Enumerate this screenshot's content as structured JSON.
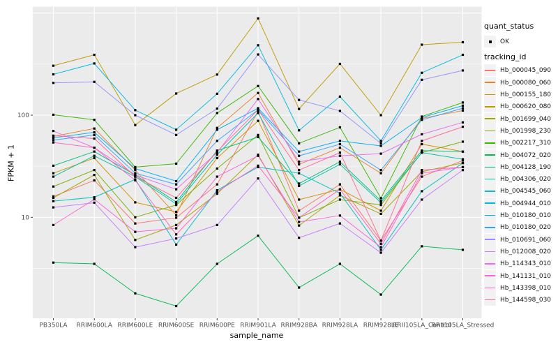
{
  "axes": {
    "y_title": "FPKM + 1",
    "x_title": "sample_name",
    "y_tick_labels": [
      "100",
      "10"
    ]
  },
  "legend": {
    "quant_status_title": "quant_status",
    "quant_status_items": [
      {
        "label": "OK",
        "glyph": "point"
      }
    ],
    "tracking_title": "tracking_id"
  },
  "colors": {
    "panel_bg": "#EBEBEB",
    "grid": "#FFFFFF",
    "tick": "#333333",
    "tick_label": "#4D4D4D",
    "legend_key_bg": "#F2F2F2",
    "point": "#000000"
  },
  "chart_data": {
    "type": "line",
    "title": "",
    "xlabel": "sample_name",
    "ylabel": "FPKM + 1",
    "x_type": "categorical",
    "y_scale": "log10",
    "grid": true,
    "legend_position": "right",
    "ylim": [
      1.03,
      1150
    ],
    "y_labeled_breaks": [
      100,
      10
    ],
    "y_major_gridlines": [
      10,
      100,
      1000
    ],
    "y_minor_gridlines": [
      3.162,
      31.62,
      316.2
    ],
    "quant_status": "OK",
    "categories": [
      "PB350LA",
      "RRIM600LA",
      "RRIM600LE",
      "RRIM600SE",
      "RRIM600PE",
      "RRIM901LA",
      "RRIM928BA",
      "RRIM928LA",
      "RRIM928LE",
      "RRII105LA_Control",
      "RRII105LA_Stressed"
    ],
    "series": [
      {
        "name": "Hb_000045_090",
        "color": "#F8766D",
        "values": [
          16,
          23,
          8.7,
          9.9,
          21,
          109,
          11.6,
          21,
          5.9,
          25,
          36
        ]
      },
      {
        "name": "Hb_000080_060",
        "color": "#EA8331",
        "values": [
          62,
          74,
          29,
          10.5,
          75,
          165,
          33,
          48,
          27,
          93,
          111
        ]
      },
      {
        "name": "Hb_000155_180",
        "color": "#D89000",
        "values": [
          27,
          38,
          14,
          11.3,
          38,
          88,
          14.9,
          18.8,
          11.6,
          52,
          44
        ]
      },
      {
        "name": "Hb_000620_080",
        "color": "#C09B00",
        "values": [
          305,
          390,
          80,
          163,
          250,
          886,
          115,
          318,
          100,
          490,
          518
        ]
      },
      {
        "name": "Hb_001699_040",
        "color": "#A3A500",
        "values": [
          15.5,
          26,
          6,
          8.4,
          17,
          41,
          8.3,
          16.4,
          10.8,
          28,
          34
        ]
      },
      {
        "name": "Hb_001998_230",
        "color": "#7CAE00",
        "values": [
          20,
          29,
          10,
          13.2,
          30,
          64,
          9.9,
          14.9,
          13.2,
          43,
          55
        ]
      },
      {
        "name": "Hb_002217_310",
        "color": "#39B600",
        "values": [
          101,
          90,
          31,
          33.5,
          105,
          193,
          53,
          76,
          15.4,
          97,
          133
        ]
      },
      {
        "name": "Hb_004072_020",
        "color": "#00BB4E",
        "values": [
          3.6,
          3.5,
          1.8,
          1.35,
          3.5,
          6.6,
          2.05,
          3.5,
          1.75,
          5.2,
          4.8
        ]
      },
      {
        "name": "Hb_004128_190",
        "color": "#00BF7D",
        "values": [
          32,
          44,
          26,
          14.1,
          45,
          61,
          21.4,
          35,
          14.5,
          45,
          44
        ]
      },
      {
        "name": "Hb_004306_020",
        "color": "#00C1A3",
        "values": [
          25,
          40,
          25,
          13.5,
          41,
          105,
          20.3,
          33,
          13.9,
          43,
          37
        ]
      },
      {
        "name": "Hb_004545_060",
        "color": "#00BFC4",
        "values": [
          14.4,
          15.7,
          23.5,
          5.4,
          18.4,
          31,
          27,
          17.2,
          4.8,
          18,
          34
        ]
      },
      {
        "name": "Hb_004944_010",
        "color": "#00BAE0",
        "values": [
          251,
          321,
          112,
          72,
          162,
          484,
          71,
          152,
          56,
          260,
          390
        ]
      },
      {
        "name": "Hb_010180_010",
        "color": "#00B0F6",
        "values": [
          60,
          68,
          30,
          22.6,
          72,
          117,
          44,
          56,
          50,
          95,
          124
        ]
      },
      {
        "name": "Hb_010180_020",
        "color": "#35A2FF",
        "values": [
          57,
          64,
          27,
          21,
          56,
          113,
          40,
          52,
          29,
          90,
          117
        ]
      },
      {
        "name": "Hb_010691_060",
        "color": "#9590FF",
        "values": [
          207,
          212,
          100,
          64,
          116,
          393,
          141,
          110,
          53,
          222,
          274
        ]
      },
      {
        "name": "Hb_012008_020",
        "color": "#C77CFF",
        "values": [
          12.5,
          13.9,
          5.1,
          6.2,
          8.4,
          24,
          6.3,
          8.7,
          4.5,
          14.9,
          29
        ]
      },
      {
        "name": "Hb_114343_010",
        "color": "#E76BF3",
        "values": [
          70,
          48,
          26,
          18.8,
          43,
          144,
          35,
          40,
          42,
          65,
          85
        ]
      },
      {
        "name": "Hb_141131_010",
        "color": "#FA62DB",
        "values": [
          8.4,
          15,
          7.2,
          7.8,
          25,
          40,
          9,
          10.4,
          5.1,
          27,
          31
        ]
      },
      {
        "name": "Hb_143398_010",
        "color": "#FF61C3",
        "values": [
          54,
          48,
          23,
          6.8,
          17.8,
          32,
          9.9,
          18.8,
          5.5,
          29,
          31
        ]
      },
      {
        "name": "Hb_144598_030",
        "color": "#FF6A98",
        "values": [
          63,
          59,
          25,
          15.5,
          44,
          113,
          29,
          43,
          5.9,
          56,
          77
        ]
      }
    ]
  }
}
